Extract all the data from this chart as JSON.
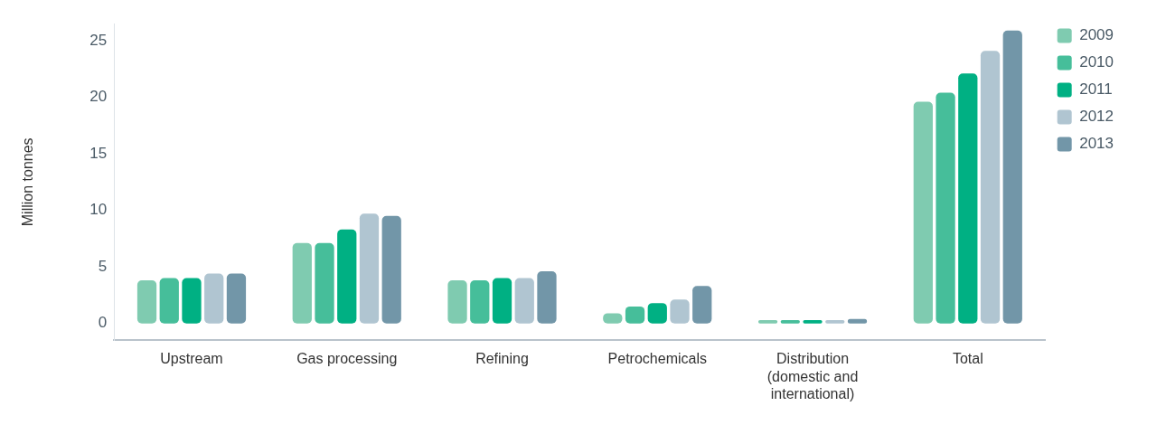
{
  "chart_data": {
    "type": "bar",
    "ylabel": "Million tonnes",
    "categories": [
      "Upstream",
      "Gas processing",
      "Refining",
      "Petrochemicals",
      "Distribution (domestic and international)",
      "Total"
    ],
    "series": [
      {
        "name": "2009",
        "color": "#7fcbb0",
        "values": [
          3.8,
          7.1,
          3.8,
          0.9,
          0.3,
          19.6
        ]
      },
      {
        "name": "2010",
        "color": "#46be9a",
        "values": [
          4.0,
          7.1,
          3.8,
          1.5,
          0.3,
          20.4
        ]
      },
      {
        "name": "2011",
        "color": "#00b083",
        "values": [
          4.0,
          8.3,
          4.0,
          1.8,
          0.3,
          22.1
        ]
      },
      {
        "name": "2012",
        "color": "#b0c5d1",
        "values": [
          4.4,
          9.7,
          4.0,
          2.1,
          0.3,
          24.1
        ]
      },
      {
        "name": "2013",
        "color": "#7296a8",
        "values": [
          4.4,
          9.5,
          4.6,
          3.3,
          0.4,
          25.9
        ]
      }
    ],
    "ylim": [
      -1.5,
      26.5
    ],
    "yticks": [
      0,
      5,
      10,
      15,
      20,
      25
    ],
    "grid": false,
    "legend": "right"
  }
}
